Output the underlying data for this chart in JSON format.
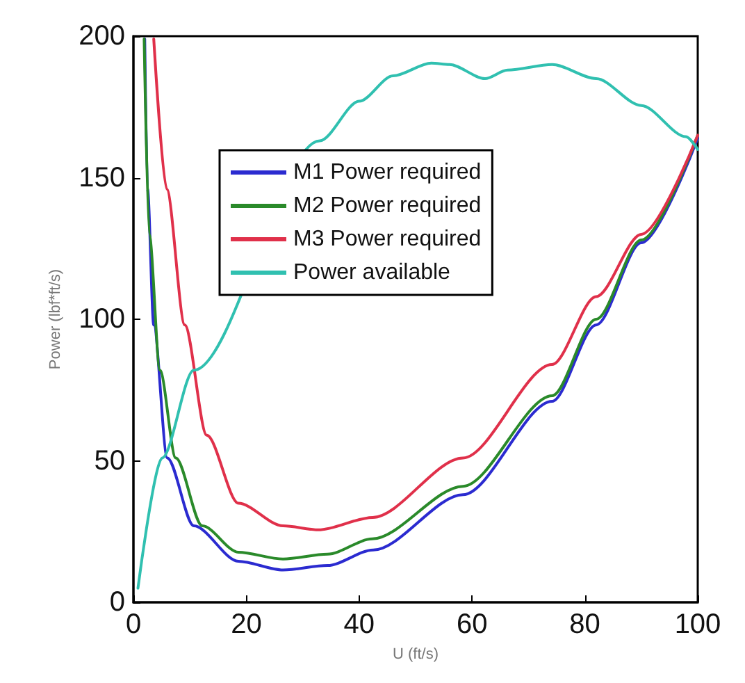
{
  "chart_data": {
    "type": "line",
    "xlabel": "U (ft/s)",
    "ylabel": "Power (lbf*ft/s)",
    "xlim": [
      0,
      100
    ],
    "ylim": [
      0,
      200
    ],
    "xticks": [
      0,
      20,
      40,
      60,
      80,
      100
    ],
    "yticks": [
      0,
      50,
      100,
      150,
      200
    ],
    "grid": false,
    "legend": "top",
    "marker": "none",
    "line_style": "solid",
    "series": [
      {
        "name": "M1 Power required",
        "color": "#2b2bd0",
        "x": [
          2.0,
          2.5,
          3.6,
          6,
          10.7,
          18.6,
          26.5,
          34.4,
          42.5,
          58.4,
          74.2,
          82,
          90,
          100
        ],
        "values": [
          199,
          146,
          98,
          51,
          27,
          14.5,
          11.4,
          13,
          18.5,
          38,
          71,
          98,
          127,
          164
        ]
      },
      {
        "name": "M2 Power required",
        "color": "#2a8a2a",
        "x": [
          1.9,
          2.8,
          4.7,
          7.5,
          12.2,
          18.6,
          26.5,
          34.4,
          42.3,
          58.4,
          74.2,
          82,
          90,
          100
        ],
        "values": [
          199,
          130,
          82,
          51,
          27,
          17.7,
          15.3,
          17,
          22.4,
          41,
          73,
          100,
          128,
          165
        ]
      },
      {
        "name": "M3 Power required",
        "color": "#e0304a",
        "x": [
          3.6,
          5.9,
          9.1,
          13,
          18.6,
          26.5,
          32.8,
          42.4,
          58.4,
          74.2,
          82,
          90,
          100
        ],
        "values": [
          199,
          146,
          98,
          59,
          35,
          27,
          25.6,
          30,
          51,
          84,
          108,
          130,
          165
        ]
      },
      {
        "name": "Power available",
        "color": "#30c0b0",
        "x": [
          0.8,
          5.1,
          10.7,
          33,
          40,
          46,
          52.8,
          56,
          62.3,
          66.3,
          74.2,
          82,
          90,
          97.9,
          100
        ],
        "values": [
          5,
          51,
          82,
          163,
          177,
          186,
          190.5,
          190,
          185,
          188,
          190,
          185,
          175.5,
          164.5,
          160
        ]
      }
    ]
  }
}
